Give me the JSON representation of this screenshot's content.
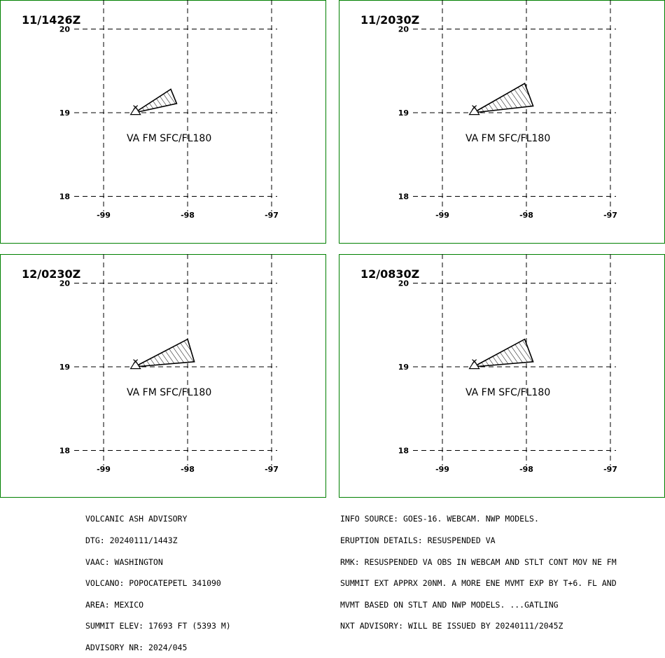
{
  "axes": {
    "lon_ticks": [
      -99,
      -98,
      -97
    ],
    "lat_ticks": [
      20,
      19,
      18
    ],
    "lon_labels": [
      "-99",
      "-98",
      "-97"
    ],
    "lat_labels": [
      "20",
      "19",
      "18"
    ]
  },
  "volcano_location": {
    "lat": 19.02,
    "lon": -98.62
  },
  "panels": [
    {
      "time": "11/1426Z",
      "label": "VA FM SFC/FL180",
      "polygon": [
        [
          -98.63,
          19.0
        ],
        [
          -98.2,
          19.28
        ],
        [
          -98.13,
          19.11
        ]
      ]
    },
    {
      "time": "11/2030Z",
      "label": "VA FM SFC/FL180",
      "polygon": [
        [
          -98.63,
          19.0
        ],
        [
          -98.02,
          19.35
        ],
        [
          -97.92,
          19.08
        ]
      ]
    },
    {
      "time": "12/0230Z",
      "label": "VA FM SFC/FL180",
      "polygon": [
        [
          -98.63,
          19.0
        ],
        [
          -98.0,
          19.33
        ],
        [
          -97.92,
          19.06
        ]
      ]
    },
    {
      "time": "12/0830Z",
      "label": "VA FM SFC/FL180",
      "polygon": [
        [
          -98.63,
          19.0
        ],
        [
          -98.02,
          19.33
        ],
        [
          -97.92,
          19.06
        ]
      ]
    }
  ],
  "advisory_left": [
    "VOLCANIC ASH ADVISORY",
    "DTG: 20240111/1443Z",
    "VAAC: WASHINGTON",
    "VOLCANO: POPOCATEPETL 341090",
    "AREA: MEXICO",
    "SUMMIT ELEV: 17693 FT (5393 M)",
    "ADVISORY NR: 2024/045"
  ],
  "advisory_right": [
    "INFO SOURCE: GOES-16. WEBCAM. NWP MODELS.",
    "ERUPTION DETAILS: RESUSPENDED VA",
    "RMK: RESUSPENDED VA OBS IN WEBCAM AND STLT CONT MOV NE FM",
    "SUMMIT EXT APPRX 20NM. A MORE ENE MVMT EXP BY T+6. FL AND",
    "MVMT BASED ON STLT AND NWP MODELS. ...GATLING",
    "NXT ADVISORY: WILL BE ISSUED BY 20240111/2045Z"
  ],
  "colors": {
    "panel_border": "#008000",
    "ink": "#000000"
  }
}
